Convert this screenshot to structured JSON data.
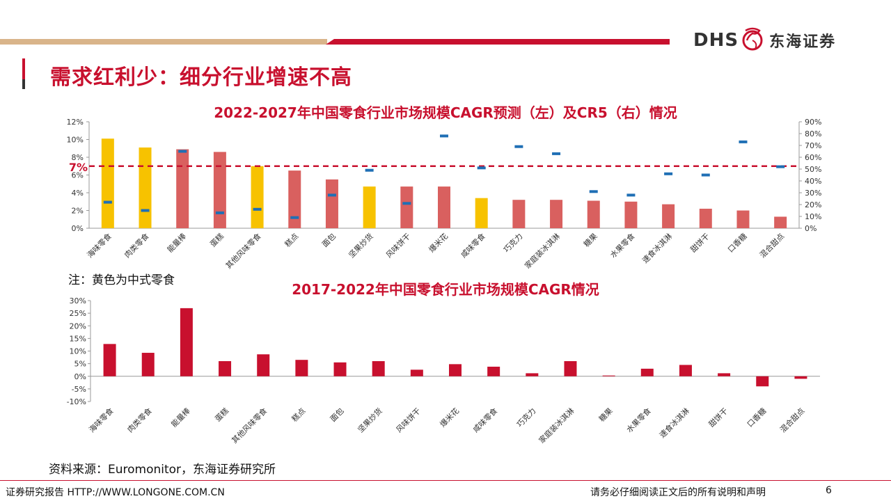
{
  "header": {
    "logo_text": "DHS",
    "company_name": "东海证券",
    "page_title": "需求红利少：细分行业增速不高"
  },
  "note": "注：黄色为中式零食",
  "source": "资料来源：Euromonitor，东海证券研究所",
  "footer": {
    "left": "证券研究报告 HTTP://WWW.LONGONE.COM.CN",
    "right": "请务必仔细阅读正文后的所有说明和声明",
    "page_number": "6"
  },
  "colors": {
    "red": "#c8102e",
    "yellow": "#f7c200",
    "pink": "#d9605f",
    "blue": "#1f6fb5"
  },
  "chart_data": [
    {
      "type": "bar",
      "title": "2022-2027年中国零食行业市场规模CAGR预测（左）及CR5（右）情况",
      "categories": [
        "海味零食",
        "肉类零食",
        "能量棒",
        "蛋糕",
        "其他风味零食",
        "糕点",
        "面包",
        "坚果炒货",
        "风味饼干",
        "爆米花",
        "咸味零食",
        "巧克力",
        "家庭装冰淇淋",
        "糖果",
        "水果零食",
        "速食冰淇淋",
        "甜饼干",
        "口香糖",
        "混合甜点"
      ],
      "series": [
        {
          "name": "CAGR(左)",
          "axis": "left",
          "values": [
            10.1,
            9.1,
            8.9,
            8.6,
            7.0,
            6.5,
            5.5,
            4.7,
            4.7,
            4.7,
            3.4,
            3.2,
            3.2,
            3.1,
            3.0,
            2.7,
            2.2,
            2.0,
            1.3
          ]
        },
        {
          "name": "CR5(右)",
          "axis": "right",
          "type": "marker",
          "values": [
            22,
            15,
            65,
            13,
            16,
            9,
            28,
            49,
            21,
            78,
            51,
            69,
            63,
            31,
            28,
            46,
            45,
            73,
            52
          ]
        }
      ],
      "chinese_style": [
        true,
        true,
        false,
        false,
        true,
        false,
        false,
        true,
        false,
        false,
        true,
        false,
        false,
        false,
        false,
        false,
        false,
        false,
        false
      ],
      "reference_line": {
        "value": 7,
        "label": "7%"
      },
      "y_left": {
        "min": 0,
        "max": 12,
        "ticks": [
          "0%",
          "2%",
          "4%",
          "6%",
          "8%",
          "10%",
          "12%"
        ]
      },
      "y_right": {
        "min": 0,
        "max": 90,
        "ticks": [
          "0%",
          "10%",
          "20%",
          "30%",
          "40%",
          "50%",
          "60%",
          "70%",
          "80%",
          "90%"
        ]
      }
    },
    {
      "type": "bar",
      "title": "2017-2022年中国零食行业市场规模CAGR情况",
      "categories": [
        "海味零食",
        "肉类零食",
        "能量棒",
        "蛋糕",
        "其他风味零食",
        "糕点",
        "面包",
        "坚果炒货",
        "风味饼干",
        "爆米花",
        "咸味零食",
        "巧克力",
        "家庭装冰淇淋",
        "糖果",
        "水果零食",
        "速食冰淇淋",
        "甜饼干",
        "口香糖",
        "混合甜点"
      ],
      "values": [
        12.8,
        9.3,
        27.0,
        6.0,
        8.7,
        6.5,
        5.5,
        6.0,
        2.6,
        4.8,
        3.8,
        1.2,
        6.0,
        0.3,
        3.0,
        4.5,
        1.2,
        -4.0,
        -1.0
      ],
      "y": {
        "min": -10,
        "max": 30,
        "ticks": [
          "-10%",
          "-5%",
          "0%",
          "5%",
          "10%",
          "15%",
          "20%",
          "25%",
          "30%"
        ]
      }
    }
  ]
}
